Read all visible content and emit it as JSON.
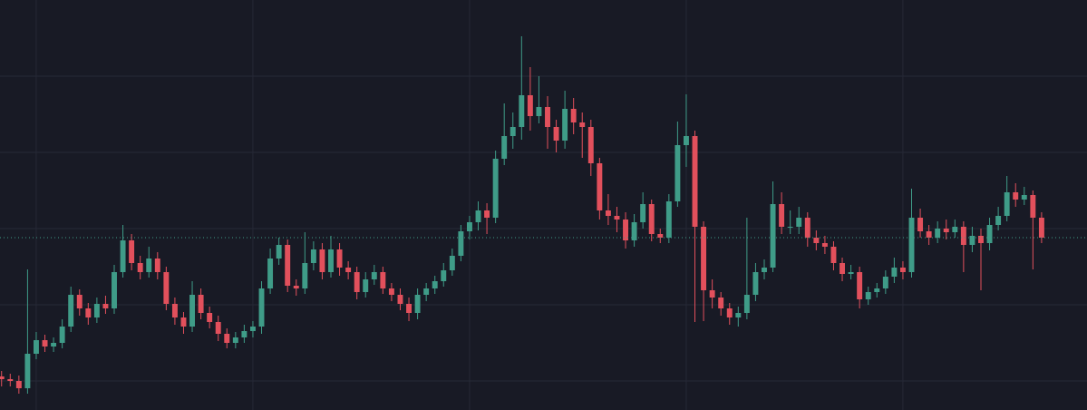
{
  "chart_data": {
    "type": "candlestick",
    "open": [
      89,
      86,
      84,
      76,
      114,
      129,
      122,
      126,
      144,
      179,
      164,
      154,
      169,
      164,
      204,
      239,
      214,
      204,
      219,
      204,
      169,
      154,
      144,
      179,
      159,
      149,
      136,
      126,
      132,
      139,
      144,
      186,
      219,
      234,
      189,
      186,
      214,
      229,
      204,
      229,
      209,
      204,
      182,
      196,
      204,
      186,
      179,
      169,
      159,
      179,
      186,
      194,
      206,
      222,
      249,
      259,
      272,
      264,
      329,
      354,
      364,
      399,
      376,
      386,
      364,
      349,
      384,
      369,
      364,
      324,
      272,
      266,
      262,
      239,
      259,
      279,
      246,
      242,
      282,
      344,
      354,
      254,
      184,
      176,
      164,
      154,
      159,
      179,
      204,
      209,
      279,
      254,
      254,
      264,
      242,
      236,
      232,
      214,
      202,
      204,
      174,
      182,
      186,
      199,
      209,
      204,
      264,
      249,
      242,
      252,
      248,
      254,
      234,
      244,
      236,
      256,
      266,
      292,
      284,
      289,
      264
    ],
    "high": [
      95,
      92,
      90,
      207,
      138,
      135,
      132,
      152,
      188,
      185,
      170,
      176,
      178,
      212,
      256,
      246,
      222,
      232,
      226,
      210,
      176,
      160,
      194,
      186,
      166,
      156,
      142,
      138,
      146,
      150,
      194,
      230,
      242,
      240,
      196,
      248,
      238,
      236,
      244,
      236,
      216,
      210,
      204,
      212,
      210,
      192,
      186,
      176,
      186,
      192,
      200,
      214,
      230,
      256,
      266,
      282,
      280,
      338,
      390,
      380,
      464,
      430,
      420,
      398,
      372,
      404,
      396,
      380,
      372,
      330,
      290,
      276,
      270,
      268,
      292,
      284,
      252,
      290,
      370,
      400,
      360,
      260,
      196,
      182,
      170,
      166,
      264,
      214,
      218,
      304,
      292,
      272,
      276,
      270,
      250,
      244,
      238,
      220,
      212,
      210,
      188,
      192,
      206,
      220,
      216,
      296,
      274,
      256,
      260,
      262,
      262,
      260,
      254,
      252,
      264,
      276,
      310,
      302,
      298,
      294,
      270
    ],
    "low": [
      78,
      78,
      70,
      70,
      108,
      116,
      116,
      120,
      138,
      156,
      146,
      148,
      158,
      158,
      198,
      206,
      196,
      198,
      196,
      162,
      146,
      136,
      138,
      152,
      142,
      128,
      120,
      120,
      126,
      132,
      136,
      180,
      212,
      182,
      178,
      180,
      206,
      196,
      198,
      200,
      196,
      174,
      176,
      190,
      180,
      172,
      162,
      150,
      152,
      172,
      180,
      188,
      200,
      216,
      240,
      250,
      246,
      258,
      322,
      340,
      350,
      360,
      368,
      340,
      336,
      340,
      356,
      330,
      310,
      262,
      256,
      248,
      230,
      232,
      252,
      238,
      236,
      236,
      276,
      320,
      149,
      150,
      164,
      156,
      146,
      144,
      152,
      172,
      196,
      204,
      246,
      246,
      246,
      232,
      228,
      224,
      206,
      194,
      196,
      164,
      168,
      176,
      180,
      192,
      196,
      198,
      242,
      234,
      236,
      240,
      242,
      204,
      226,
      184,
      228,
      250,
      260,
      276,
      278,
      207,
      236
    ],
    "close": [
      86,
      84,
      76,
      114,
      129,
      122,
      126,
      144,
      179,
      164,
      154,
      169,
      164,
      204,
      239,
      214,
      204,
      219,
      204,
      169,
      154,
      144,
      179,
      159,
      149,
      136,
      126,
      132,
      139,
      144,
      186,
      219,
      234,
      189,
      186,
      214,
      229,
      204,
      229,
      209,
      204,
      182,
      196,
      204,
      186,
      179,
      169,
      159,
      179,
      186,
      194,
      206,
      222,
      249,
      259,
      272,
      264,
      329,
      354,
      364,
      399,
      376,
      386,
      364,
      349,
      384,
      369,
      364,
      324,
      272,
      266,
      262,
      239,
      259,
      279,
      246,
      242,
      282,
      344,
      354,
      254,
      184,
      176,
      164,
      154,
      159,
      179,
      204,
      209,
      279,
      254,
      254,
      264,
      242,
      236,
      232,
      214,
      202,
      204,
      174,
      182,
      186,
      199,
      209,
      204,
      264,
      249,
      242,
      252,
      248,
      254,
      234,
      244,
      236,
      256,
      266,
      292,
      284,
      289,
      264,
      242
    ],
    "up_color": "#3f9c88",
    "down_color": "#e2505c",
    "xlim": [
      -0.18,
      125.24
    ],
    "xticks": [
      4,
      29,
      54,
      79,
      104
    ],
    "ylim": [
      52,
      504
    ],
    "yticks": [
      84,
      168,
      252,
      336,
      420
    ],
    "grid": true,
    "price_line": true
  }
}
